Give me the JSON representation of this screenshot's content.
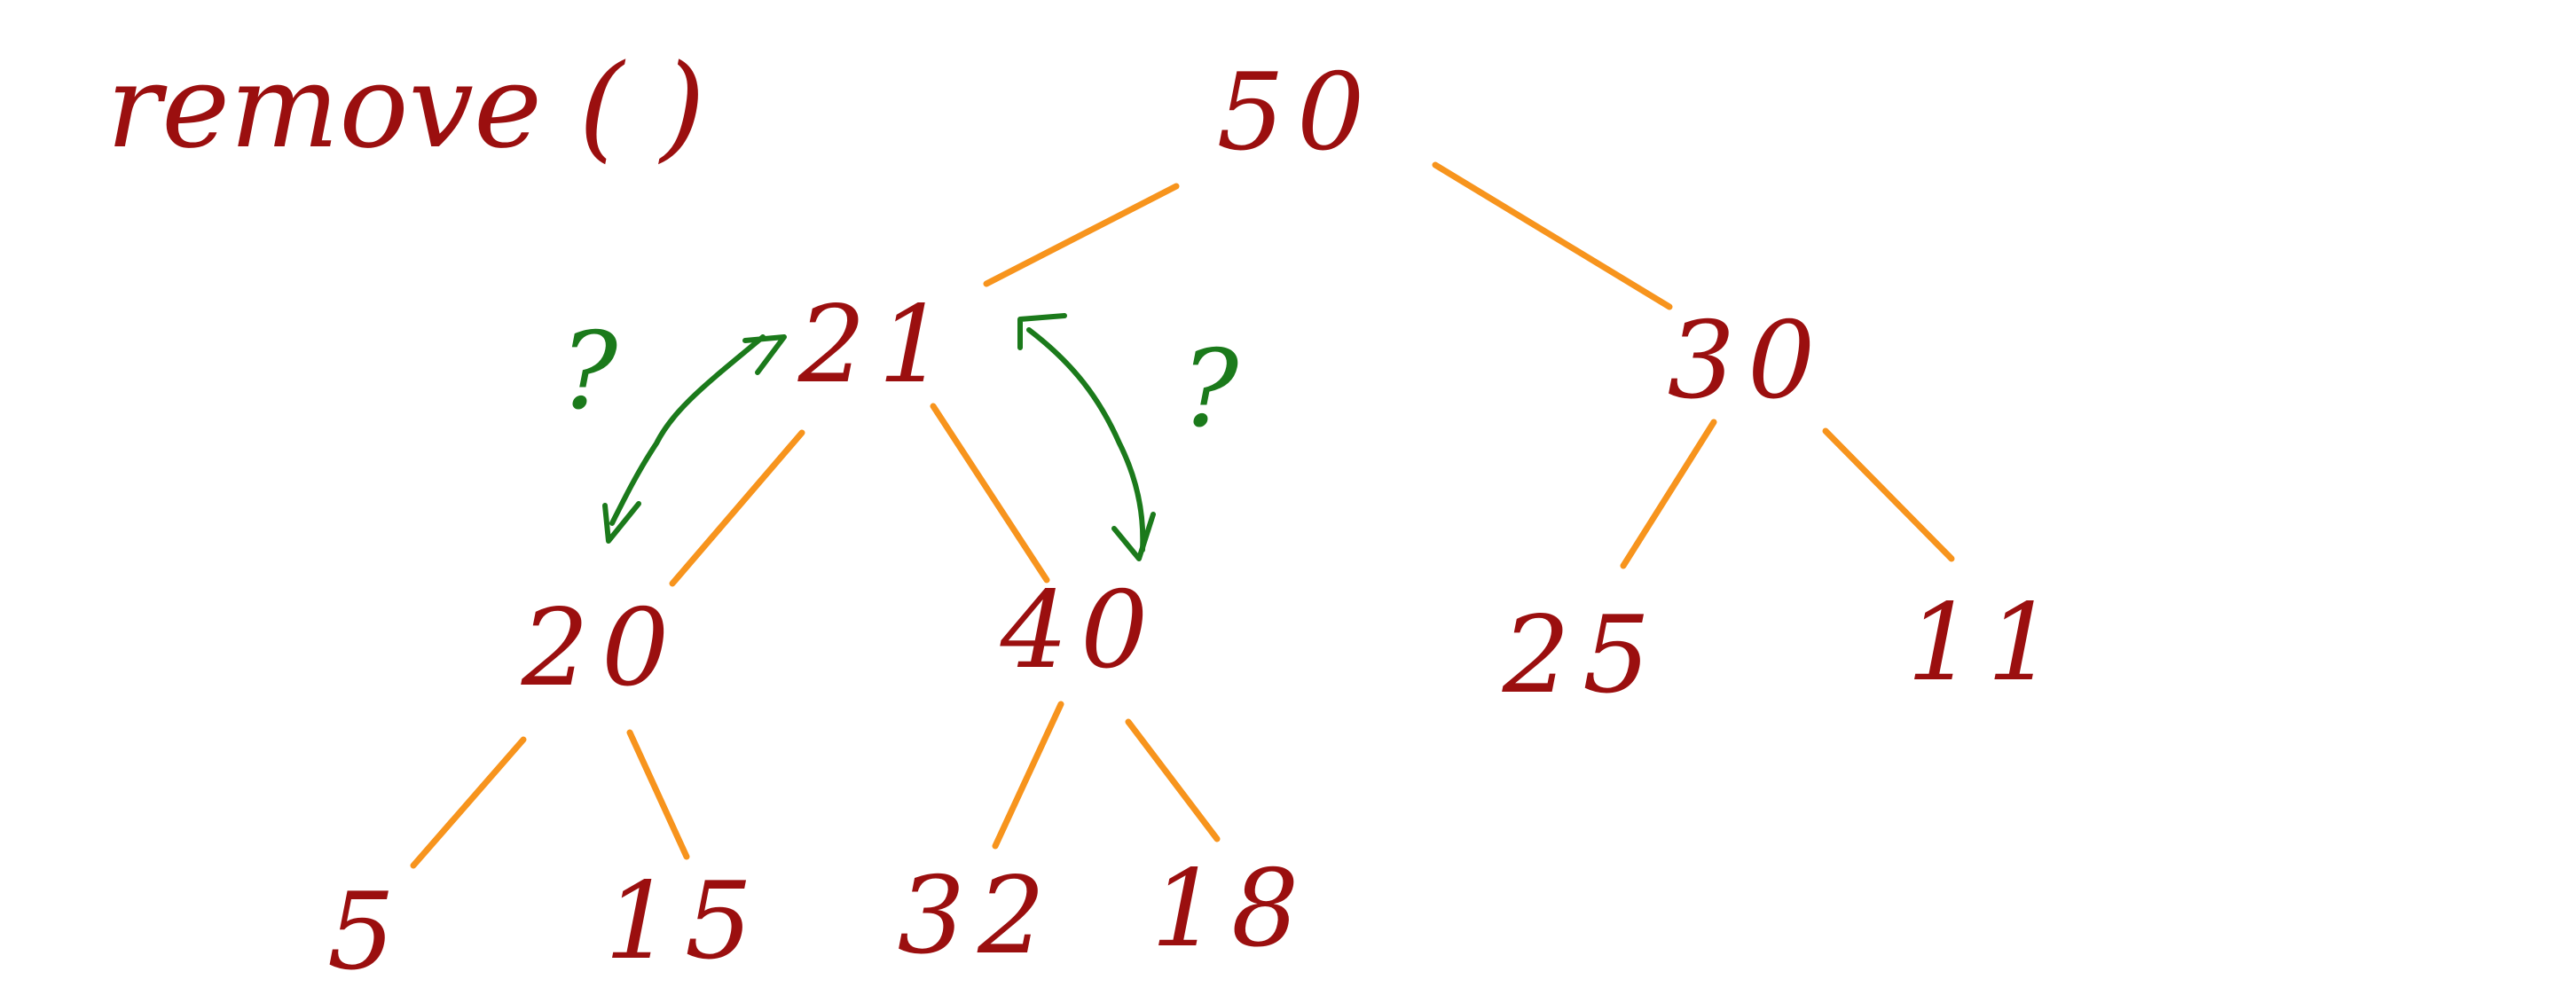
{
  "title": "remove ( )",
  "colors": {
    "node_text": "#9b0f0f",
    "edge": "#f7941d",
    "annotation": "#1b7a1b"
  },
  "heap": {
    "nodes": [
      {
        "id": "n50",
        "label": "50"
      },
      {
        "id": "n21",
        "label": "21"
      },
      {
        "id": "n30",
        "label": "30"
      },
      {
        "id": "n20",
        "label": "20"
      },
      {
        "id": "n40",
        "label": "40"
      },
      {
        "id": "n25",
        "label": "25"
      },
      {
        "id": "n11",
        "label": "11"
      },
      {
        "id": "n5",
        "label": "5"
      },
      {
        "id": "n15",
        "label": "15"
      },
      {
        "id": "n32",
        "label": "32"
      },
      {
        "id": "n18",
        "label": "18"
      }
    ],
    "edges": [
      {
        "from": "50",
        "to": "21"
      },
      {
        "from": "50",
        "to": "30"
      },
      {
        "from": "21",
        "to": "20"
      },
      {
        "from": "21",
        "to": "40"
      },
      {
        "from": "30",
        "to": "25"
      },
      {
        "from": "30",
        "to": "11"
      },
      {
        "from": "20",
        "to": "5"
      },
      {
        "from": "20",
        "to": "15"
      },
      {
        "from": "40",
        "to": "32"
      },
      {
        "from": "40",
        "to": "18"
      }
    ]
  },
  "annotations": {
    "left_question": "?",
    "right_question": "?",
    "left_swap": {
      "between": [
        "21",
        "20"
      ]
    },
    "right_swap": {
      "between": [
        "21",
        "40"
      ]
    }
  }
}
